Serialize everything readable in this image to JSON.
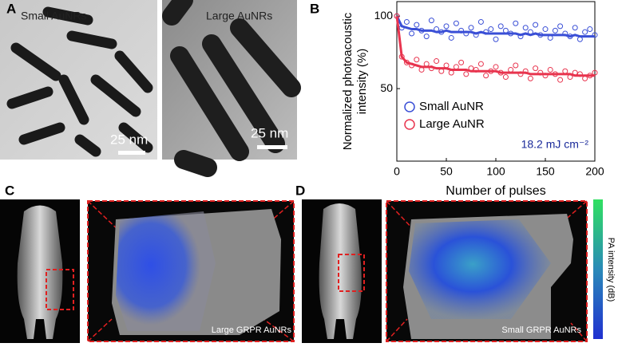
{
  "panels": {
    "a": "A",
    "b": "B",
    "c": "C",
    "d": "D"
  },
  "tem": {
    "small": "Small AuNRs",
    "large": "Large AuNRs",
    "scale_small": "25 nm",
    "scale_large": "25 nm"
  },
  "imaging": {
    "large": "Large GRPR AuNRs",
    "small": "Small GRPR AuNRs",
    "colorbar": "PA intensity (dB)"
  },
  "chart_data": {
    "type": "scatter",
    "xlabel": "Number of pulses",
    "ylabel": [
      "Normalized photoacoustic",
      "intensity (%)"
    ],
    "annotation": "18.2 mJ cm⁻²",
    "xlim": [
      0,
      200
    ],
    "xticks": [
      0,
      50,
      100,
      150,
      200
    ],
    "ylim": [
      0,
      110
    ],
    "yticks": [
      50,
      100
    ],
    "legend": "lower left",
    "x": [
      0,
      5,
      10,
      15,
      20,
      25,
      30,
      35,
      40,
      45,
      50,
      55,
      60,
      65,
      70,
      75,
      80,
      85,
      90,
      95,
      100,
      105,
      110,
      115,
      120,
      125,
      130,
      135,
      140,
      145,
      150,
      155,
      160,
      165,
      170,
      175,
      180,
      185,
      190,
      195,
      200
    ],
    "series": [
      {
        "name": "Small AuNR",
        "color": "#3a4fd6",
        "values": [
          100,
          92,
          96,
          88,
          94,
          90,
          86,
          97,
          91,
          89,
          93,
          85,
          95,
          90,
          88,
          92,
          87,
          96,
          89,
          91,
          84,
          93,
          90,
          88,
          95,
          86,
          92,
          89,
          94,
          87,
          91,
          85,
          90,
          93,
          88,
          86,
          92,
          84,
          89,
          91,
          87
        ],
        "fit_values": [
          100,
          93,
          92,
          91,
          91,
          90,
          90,
          90,
          89,
          89,
          90,
          89,
          89,
          89,
          89,
          89,
          88,
          89,
          88,
          88,
          88,
          88,
          88,
          88,
          88,
          87,
          88,
          87,
          88,
          87,
          87,
          87,
          87,
          87,
          87,
          86,
          87,
          86,
          86,
          86,
          86
        ]
      },
      {
        "name": "Large AuNR",
        "color": "#e8344e",
        "values": [
          100,
          72,
          68,
          66,
          70,
          63,
          67,
          64,
          69,
          62,
          66,
          61,
          65,
          68,
          60,
          64,
          63,
          67,
          59,
          62,
          65,
          61,
          58,
          63,
          66,
          60,
          62,
          57,
          64,
          61,
          59,
          63,
          60,
          56,
          62,
          58,
          61,
          60,
          57,
          59,
          61
        ],
        "fit_values": [
          100,
          72,
          68,
          67,
          66,
          65,
          65,
          65,
          64,
          64,
          64,
          63,
          63,
          63,
          63,
          62,
          62,
          62,
          62,
          62,
          62,
          61,
          61,
          61,
          61,
          61,
          61,
          60,
          60,
          60,
          60,
          60,
          60,
          60,
          60,
          60,
          59,
          59,
          59,
          59,
          59
        ]
      }
    ]
  }
}
